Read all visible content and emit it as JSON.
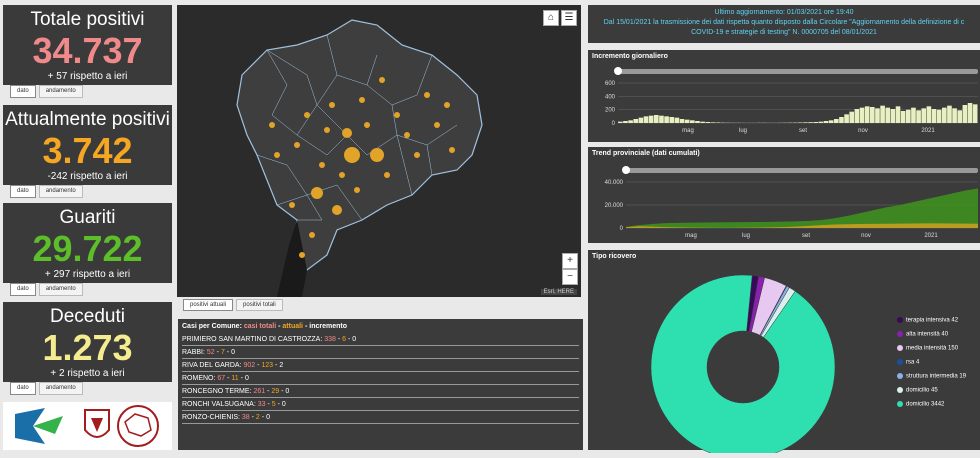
{
  "stats": [
    {
      "title": "Totale positivi",
      "value": "34.737",
      "sub": "+ 57 rispetto a ieri",
      "color": "#f08a8a"
    },
    {
      "title": "Attualmente positivi",
      "value": "3.742",
      "sub": "-242 rispetto a ieri",
      "color": "#f5a623"
    },
    {
      "title": "Guariti",
      "value": "29.722",
      "sub": "+ 297 rispetto a ieri",
      "color": "#5cbf2a"
    },
    {
      "title": "Deceduti",
      "value": "1.273",
      "sub": "+ 2 rispetto a ieri",
      "color": "#f4ec8f"
    }
  ],
  "stat_tabs": [
    "dato",
    "andamento"
  ],
  "map": {
    "tabs": [
      "positivi attuali",
      "positivi totali"
    ],
    "attribution": "Esri, HERE",
    "zoom_in": "+",
    "zoom_out": "−"
  },
  "table": {
    "header_prefix": "Casi per Comune: ",
    "header_totali": "casi totali",
    "header_sep1": " - ",
    "header_attuali": "attuali",
    "header_sep2": " - ",
    "header_incremento": "incremento",
    "rows": [
      {
        "name": "PRIMIERO SAN MARTINO DI CASTROZZA: ",
        "tot": "338",
        "att": "6",
        "inc": "0"
      },
      {
        "name": "RABBI: ",
        "tot": "52",
        "att": "7",
        "inc": "0"
      },
      {
        "name": "RIVA DEL GARDA: ",
        "tot": "902",
        "att": "123",
        "inc": "2"
      },
      {
        "name": "ROMENO: ",
        "tot": "67",
        "att": "11",
        "inc": "0"
      },
      {
        "name": "RONCEGNO TERME: ",
        "tot": "261",
        "att": "29",
        "inc": "0"
      },
      {
        "name": "RONCHI VALSUGANA: ",
        "tot": "33",
        "att": "5",
        "inc": "0"
      },
      {
        "name": "RONZO-CHIENIS: ",
        "tot": "38",
        "att": "2",
        "inc": "0"
      }
    ]
  },
  "update": {
    "line1": "Ultimo aggiornamento: 01/03/2021 ore 19:40",
    "line2": "Dal 15/01/2021 la trasmissione dei dati rispetta quanto disposto dalla Circolare \"Aggiornamento della definizione di c",
    "line3": "COVID-19 e strategie di testing\" N. 0000705 del 08/01/2021"
  },
  "chart_data": [
    {
      "type": "bar",
      "title": "Incremento giornaliero",
      "y_ticks": [
        "600",
        "400",
        "200",
        "0"
      ],
      "ylim": [
        0,
        600
      ],
      "x_ticks": [
        "mag",
        "lug",
        "set",
        "nov",
        "2021"
      ],
      "values": [
        20,
        30,
        40,
        60,
        80,
        100,
        110,
        120,
        110,
        100,
        90,
        80,
        60,
        50,
        40,
        30,
        20,
        15,
        10,
        8,
        5,
        4,
        3,
        3,
        2,
        2,
        2,
        3,
        3,
        2,
        2,
        3,
        4,
        5,
        6,
        8,
        10,
        12,
        15,
        20,
        30,
        40,
        60,
        90,
        130,
        170,
        210,
        230,
        250,
        240,
        220,
        260,
        230,
        210,
        250,
        180,
        200,
        230,
        190,
        220,
        250,
        210,
        200,
        230,
        260,
        220,
        190,
        270,
        300,
        280
      ]
    },
    {
      "type": "area",
      "title": "Trend provinciale (dati cumulati)",
      "y_ticks": [
        "40.000",
        "20.000",
        "0"
      ],
      "ylim": [
        0,
        40000
      ],
      "x_ticks": [
        "mag",
        "lug",
        "set",
        "nov",
        "2021"
      ],
      "series": [
        {
          "color": "#3f8f1f",
          "values": [
            1000,
            2500,
            3500,
            4200,
            4500,
            4700,
            4800,
            4900,
            5000,
            5100,
            5200,
            5300,
            5500,
            5800,
            6200,
            7000,
            8500,
            10500,
            13000,
            15500,
            18000,
            20000,
            22500,
            25000,
            27500,
            30000,
            32500,
            34500
          ]
        },
        {
          "color": "#c8a020",
          "values": [
            800,
            1500,
            1200,
            800,
            500,
            300,
            200,
            150,
            150,
            200,
            300,
            500,
            800,
            1200,
            1800,
            2500,
            3000,
            3300,
            3500,
            3600,
            3700,
            3800,
            3900,
            4000,
            4000,
            3900,
            3800,
            3742
          ]
        }
      ]
    },
    {
      "type": "pie",
      "title": "Tipo ricovero",
      "categories": [
        "terapia intensiva",
        "alta intensità",
        "media intensità",
        "rsa",
        "struttura intermedia",
        "domicilio",
        "domicilio"
      ],
      "values": [
        42,
        40,
        150,
        4,
        19,
        45,
        3442
      ],
      "colors": [
        "#3a0a5a",
        "#8a1fb0",
        "#e6c8f0",
        "#1a4fa0",
        "#8ab0e8",
        "#d8f0ec",
        "#2ee0b0"
      ]
    }
  ]
}
